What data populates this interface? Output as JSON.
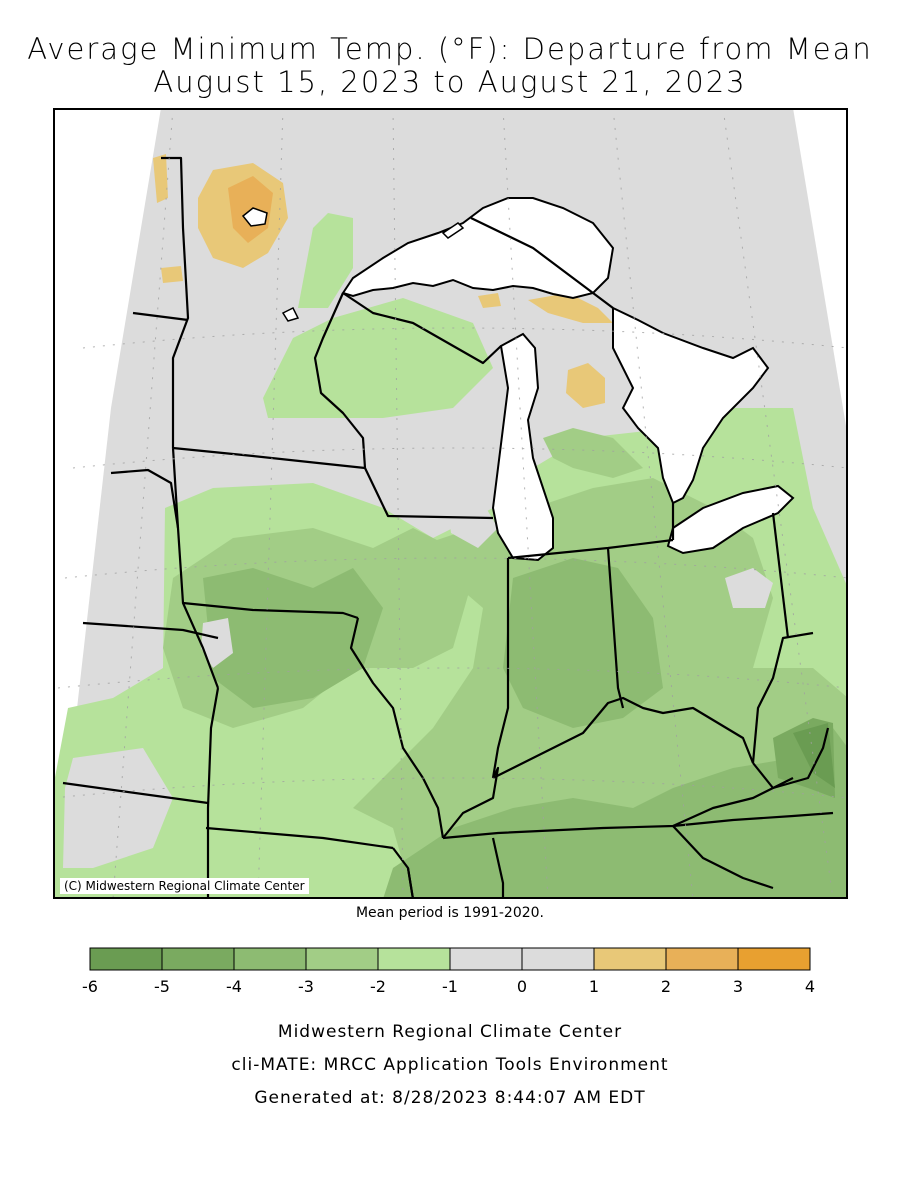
{
  "title_line1": "Average Minimum Temp. (°F): Departure from Mean",
  "title_line2": "August 15, 2023 to August 21, 2023",
  "map_credit": "(C) Midwestern Regional Climate Center",
  "mean_period": "Mean period is 1991-2020.",
  "legend": {
    "ticks": [
      "-6",
      "-5",
      "-4",
      "-3",
      "-2",
      "-1",
      "0",
      "1",
      "2",
      "3",
      "4"
    ],
    "bins": [
      {
        "from": -6,
        "to": -5,
        "color": "#6a9c52"
      },
      {
        "from": -5,
        "to": -4,
        "color": "#7aaa60"
      },
      {
        "from": -4,
        "to": -3,
        "color": "#8dbb72"
      },
      {
        "from": -3,
        "to": -2,
        "color": "#a2cd86"
      },
      {
        "from": -2,
        "to": -1,
        "color": "#b6e29b"
      },
      {
        "from": -1,
        "to": 0,
        "color": "#dcdcdc"
      },
      {
        "from": 0,
        "to": 1,
        "color": "#dcdcdc"
      },
      {
        "from": 1,
        "to": 2,
        "color": "#e8c878"
      },
      {
        "from": 2,
        "to": 3,
        "color": "#e8b058"
      },
      {
        "from": 3,
        "to": 4,
        "color": "#e8a030"
      }
    ]
  },
  "footer": {
    "line1": "Midwestern Regional Climate Center",
    "line2": "cli-MATE: MRCC Application Tools Environment",
    "line3": "Generated at: 8/28/2023 8:44:07 AM EDT"
  },
  "colors": {
    "neutral": "#dcdcdc",
    "lake": "#ffffff",
    "border": "#000000"
  }
}
